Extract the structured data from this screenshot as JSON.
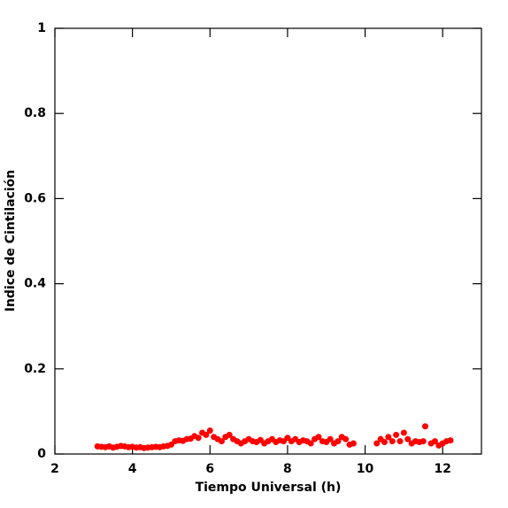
{
  "chart_data": {
    "type": "scatter",
    "xlabel": "Tiempo Universal (h)",
    "ylabel": "Indice de Cintilación",
    "xlim": [
      2,
      13
    ],
    "xticks": [
      2,
      4,
      6,
      8,
      10,
      12
    ],
    "ylim": [
      0,
      1
    ],
    "yticks": [
      0,
      0.2,
      0.4,
      0.6,
      0.8,
      1
    ],
    "color": "#ff0000",
    "x": [
      3.1,
      3.2,
      3.3,
      3.4,
      3.5,
      3.6,
      3.7,
      3.8,
      3.9,
      4.0,
      4.1,
      4.2,
      4.3,
      4.4,
      4.5,
      4.6,
      4.7,
      4.8,
      4.9,
      5.0,
      5.1,
      5.2,
      5.3,
      5.4,
      5.5,
      5.6,
      5.7,
      5.8,
      5.9,
      6.0,
      6.1,
      6.2,
      6.3,
      6.4,
      6.5,
      6.6,
      6.7,
      6.8,
      6.9,
      7.0,
      7.1,
      7.2,
      7.3,
      7.4,
      7.5,
      7.6,
      7.7,
      7.8,
      7.9,
      8.0,
      8.1,
      8.2,
      8.3,
      8.4,
      8.5,
      8.6,
      8.7,
      8.8,
      8.9,
      9.0,
      9.1,
      9.2,
      9.3,
      9.4,
      9.5,
      9.6,
      9.7,
      10.3,
      10.4,
      10.5,
      10.6,
      10.7,
      10.8,
      10.9,
      11.0,
      11.1,
      11.2,
      11.3,
      11.4,
      11.5,
      11.55,
      11.7,
      11.8,
      11.9,
      12.0,
      12.1,
      12.2
    ],
    "values": [
      0.018,
      0.017,
      0.016,
      0.018,
      0.015,
      0.017,
      0.019,
      0.018,
      0.016,
      0.017,
      0.015,
      0.016,
      0.014,
      0.015,
      0.016,
      0.017,
      0.016,
      0.018,
      0.019,
      0.022,
      0.03,
      0.032,
      0.031,
      0.035,
      0.036,
      0.042,
      0.038,
      0.05,
      0.045,
      0.055,
      0.04,
      0.035,
      0.03,
      0.04,
      0.045,
      0.035,
      0.03,
      0.025,
      0.03,
      0.035,
      0.03,
      0.028,
      0.033,
      0.025,
      0.03,
      0.035,
      0.028,
      0.032,
      0.03,
      0.038,
      0.03,
      0.035,
      0.028,
      0.032,
      0.03,
      0.025,
      0.035,
      0.04,
      0.03,
      0.028,
      0.035,
      0.025,
      0.03,
      0.04,
      0.035,
      0.022,
      0.025,
      0.025,
      0.035,
      0.028,
      0.04,
      0.03,
      0.045,
      0.03,
      0.05,
      0.035,
      0.025,
      0.03,
      0.028,
      0.03,
      0.065,
      0.025,
      0.03,
      0.02,
      0.025,
      0.03,
      0.032
    ]
  }
}
